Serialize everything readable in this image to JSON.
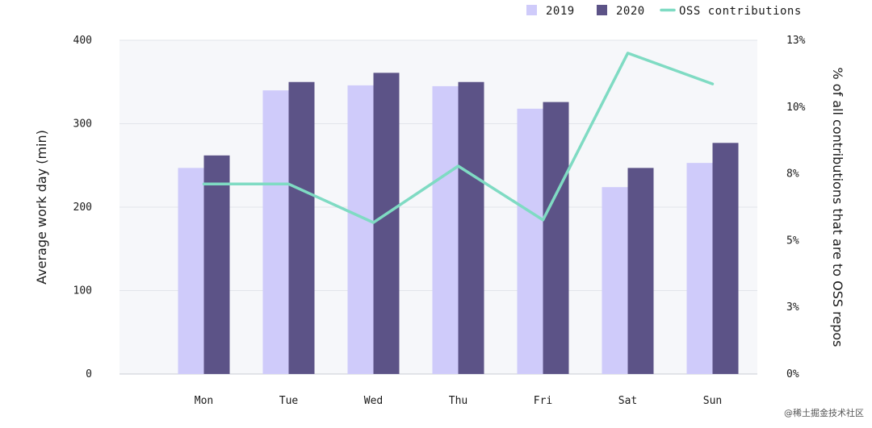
{
  "chart_data": {
    "type": "bar",
    "title": "",
    "categories": [
      "Mon",
      "Tue",
      "Wed",
      "Thu",
      "Fri",
      "Sat",
      "Sun"
    ],
    "series": [
      {
        "name": "2019",
        "type": "bar",
        "axis": "left",
        "color": "#cfcbfa",
        "values": [
          247,
          340,
          346,
          345,
          318,
          224,
          253
        ]
      },
      {
        "name": "2020",
        "type": "bar",
        "axis": "left",
        "color": "#5c5387",
        "values": [
          262,
          350,
          361,
          350,
          326,
          247,
          277
        ]
      },
      {
        "name": "OSS contributions",
        "type": "line",
        "axis": "right",
        "color": "#7fdbc3",
        "values": [
          7.4,
          7.4,
          5.9,
          8.1,
          6.0,
          12.5,
          11.3
        ]
      }
    ],
    "ylabel": "Average work day (min)",
    "ylim": [
      0,
      400
    ],
    "yticks": [
      "0",
      "100",
      "200",
      "300",
      "400"
    ],
    "y2label": "% of all contributions that are to OSS repos",
    "y2lim": [
      0,
      13
    ],
    "y2ticks": [
      "0%",
      "3%",
      "5%",
      "8%",
      "10%",
      "13%"
    ],
    "legend_position": "top-right",
    "grid": true
  },
  "watermark": "@稀土掘金技术社区"
}
